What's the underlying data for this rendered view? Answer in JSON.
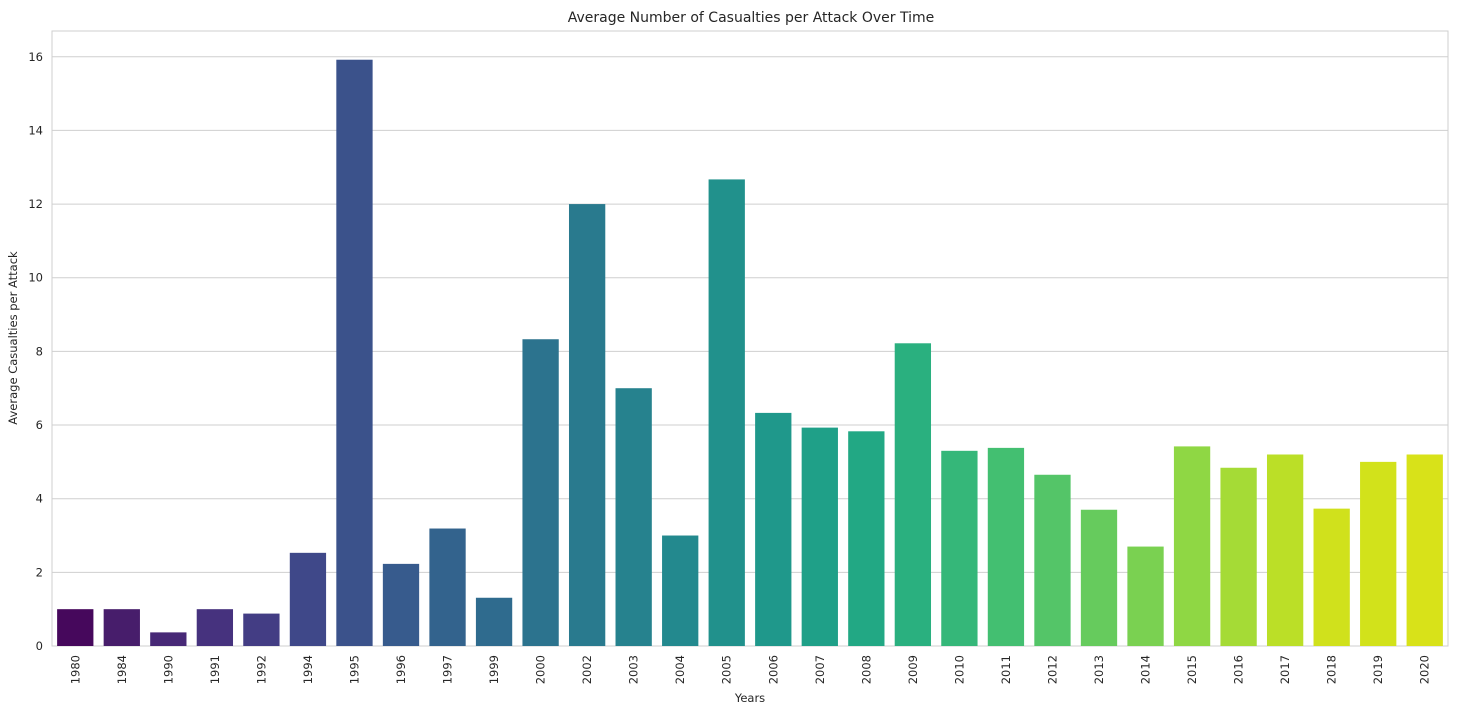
{
  "chart_data": {
    "type": "bar",
    "title": "Average Number of Casualties per Attack Over Time",
    "xlabel": "Years",
    "ylabel": "Average Casualties per Attack",
    "ylim": [
      0,
      16.7
    ],
    "yticks": [
      0,
      2,
      4,
      6,
      8,
      10,
      12,
      14,
      16
    ],
    "grid": true,
    "palette": "viridis",
    "categories": [
      "1980",
      "1984",
      "1990",
      "1991",
      "1992",
      "1994",
      "1995",
      "1996",
      "1997",
      "1999",
      "2000",
      "2002",
      "2003",
      "2004",
      "2005",
      "2006",
      "2007",
      "2008",
      "2009",
      "2010",
      "2011",
      "2012",
      "2013",
      "2014",
      "2015",
      "2016",
      "2017",
      "2018",
      "2019",
      "2020"
    ],
    "values": [
      1.0,
      1.0,
      0.37,
      1.0,
      0.88,
      2.53,
      15.92,
      2.23,
      3.19,
      1.31,
      8.33,
      12.0,
      7.0,
      3.0,
      12.67,
      6.33,
      5.93,
      5.83,
      8.22,
      5.3,
      5.38,
      4.65,
      3.7,
      2.7,
      5.42,
      4.84,
      5.2,
      3.73,
      5.0,
      5.2
    ],
    "colors": [
      "#46085c",
      "#471d6b",
      "#472876",
      "#46327e",
      "#433d84",
      "#3f4889",
      "#3b528b",
      "#375b8d",
      "#33638d",
      "#2f6b8e",
      "#2c738e",
      "#297a8e",
      "#26828e",
      "#23898e",
      "#21918c",
      "#1f988b",
      "#1fa088",
      "#22a884",
      "#2ab07f",
      "#35b779",
      "#43bf71",
      "#54c568",
      "#66cb5d",
      "#7ad151",
      "#8fd744",
      "#a5db36",
      "#bbdf27",
      "#d0e11c",
      "#d2e21b",
      "#d8e219"
    ]
  }
}
